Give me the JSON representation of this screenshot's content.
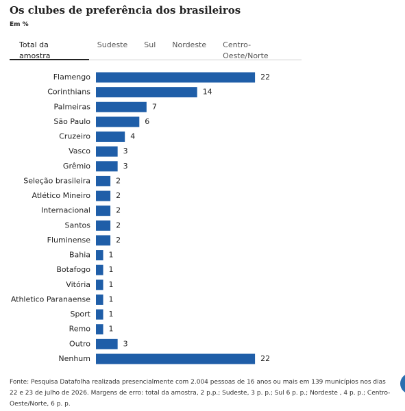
{
  "tabs": [
    "Total da amostra",
    "Sudeste",
    "Sul",
    "Nordeste",
    "Centro-Oeste/Norte"
  ],
  "chart_data": {
    "type": "bar",
    "orientation": "horizontal",
    "title": "Os clubes de preferência dos brasileiros",
    "subtitle": "Em %",
    "categories": [
      "Flamengo",
      "Corinthians",
      "Palmeiras",
      "São Paulo",
      "Cruzeiro",
      "Vasco",
      "Grêmio",
      "Seleção brasileira",
      "Atlético Mineiro",
      "Internacional",
      "Santos",
      "Fluminense",
      "Bahia",
      "Botafogo",
      "Vitória",
      "Athletico Paranaense",
      "Sport",
      "Remo",
      "Outro",
      "Nenhum"
    ],
    "values": [
      22,
      14,
      7,
      6,
      4,
      3,
      3,
      2,
      2,
      2,
      2,
      2,
      1,
      1,
      1,
      1,
      1,
      1,
      3,
      22
    ],
    "color": "#1f5ea8",
    "source": "Fonte: Pesquisa Datafolha realizada presencialmente com 2.004 pessoas de 16 anos ou mais em 139 municípios nos dias 22 e 23 de julho de 2026. Margens de erro: total da amostra, 2 p.p.; Sudeste, 3 p. p.; Sul 6 p. p.; Nordeste , 4 p. p.; Centro-Oeste/Norte, 6 p. p."
  }
}
